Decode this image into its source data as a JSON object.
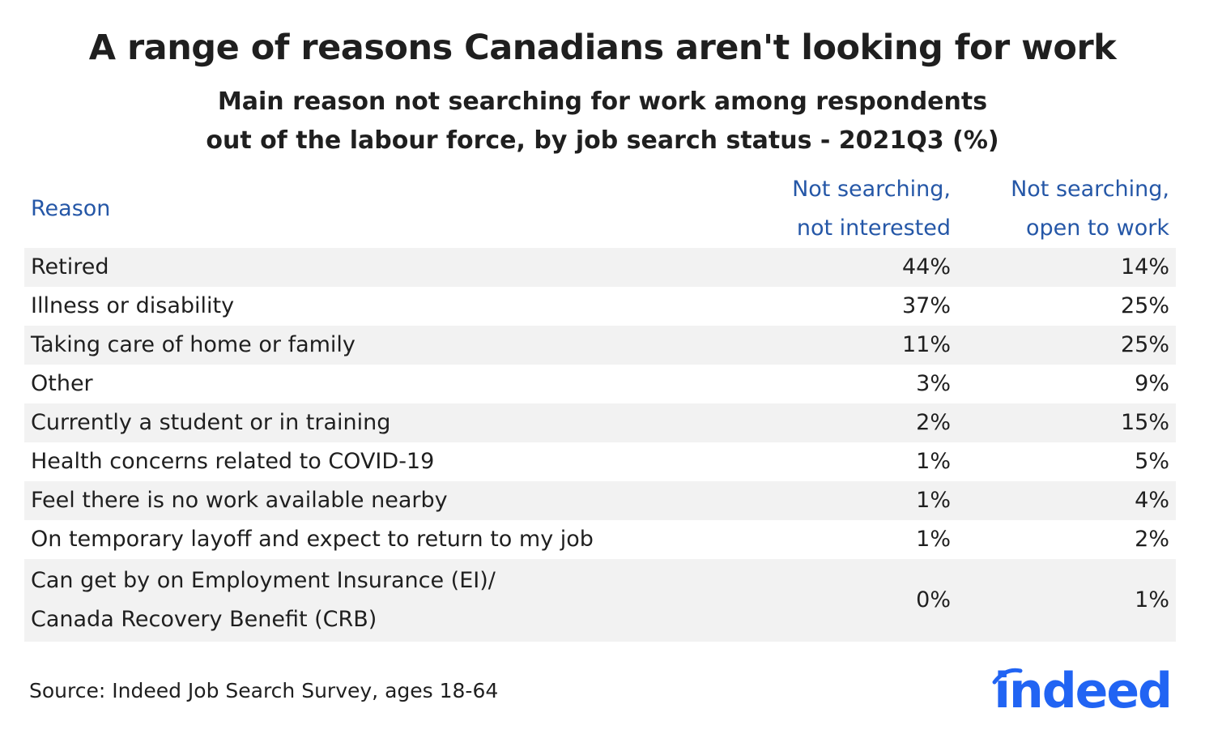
{
  "title": "A range of reasons Canadians aren't looking for work",
  "subtitle": {
    "line1": "Main reason not searching for work among respondents",
    "line2": "out of the labour force, by job search status - 2021Q3 (%)"
  },
  "chart_data": {
    "type": "table",
    "columns": {
      "reason": "Reason",
      "col1": [
        "Not searching,",
        "not interested"
      ],
      "col2": [
        "Not searching,",
        "open to work"
      ]
    },
    "rows": [
      {
        "reason": [
          "Retired"
        ],
        "not_interested": "44%",
        "open_to_work": "14%"
      },
      {
        "reason": [
          "Illness or disability"
        ],
        "not_interested": "37%",
        "open_to_work": "25%"
      },
      {
        "reason": [
          "Taking care of home or family"
        ],
        "not_interested": "11%",
        "open_to_work": "25%"
      },
      {
        "reason": [
          "Other"
        ],
        "not_interested": "3%",
        "open_to_work": "9%"
      },
      {
        "reason": [
          "Currently a student or in training"
        ],
        "not_interested": "2%",
        "open_to_work": "15%"
      },
      {
        "reason": [
          "Health concerns related to COVID-19"
        ],
        "not_interested": "1%",
        "open_to_work": "5%"
      },
      {
        "reason": [
          "Feel there is no work available nearby"
        ],
        "not_interested": "1%",
        "open_to_work": "4%"
      },
      {
        "reason": [
          "On temporary layoff and expect to return to my job"
        ],
        "not_interested": "1%",
        "open_to_work": "2%"
      },
      {
        "reason": [
          "Can get by on Employment Insurance (EI)/",
          "Canada Recovery Benefit (CRB)"
        ],
        "not_interested": "0%",
        "open_to_work": "1%"
      }
    ]
  },
  "source": "Source: Indeed Job Search Survey, ages 18-64",
  "logo": {
    "text": "indeed",
    "color": "#2164f3"
  },
  "colors": {
    "header_text": "#2557a7",
    "row_shade": "#f2f2f2"
  }
}
